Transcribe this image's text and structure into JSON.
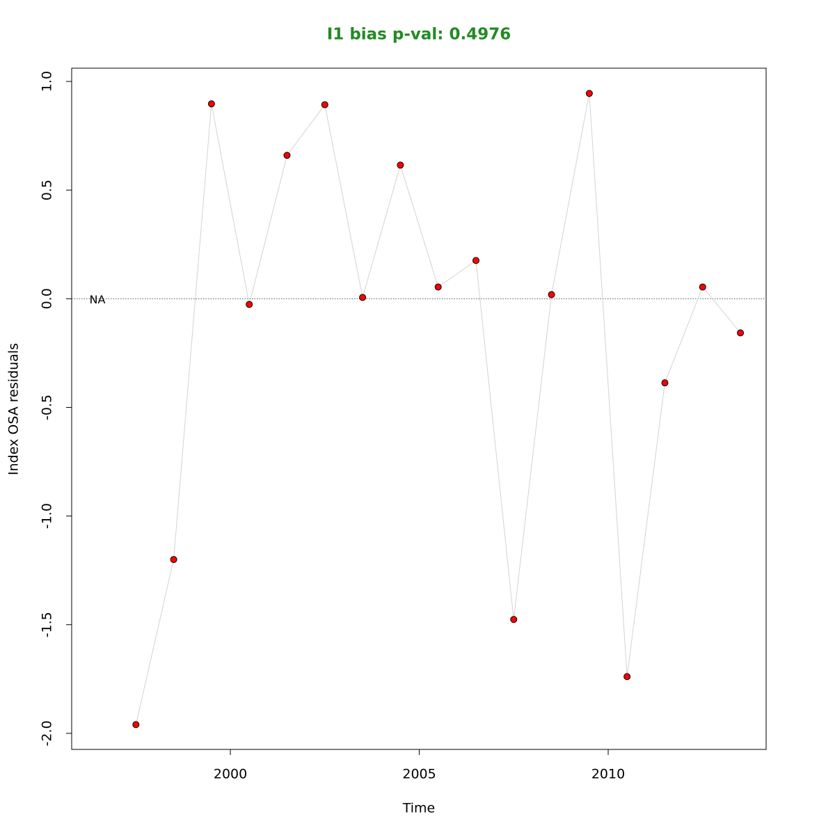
{
  "chart_data": {
    "type": "line",
    "title": "I1 bias p-val: 0.4976",
    "title_color": "#228b22",
    "x_label": "Time",
    "y_label": "Index OSA residuals",
    "annotation": "NA",
    "hline": 0,
    "x": [
      1997.5,
      1998.5,
      1999.5,
      2000.5,
      2001.5,
      2002.5,
      2003.5,
      2004.5,
      2005.5,
      2006.5,
      2007.5,
      2008.5,
      2009.5,
      2010.5,
      2011.5,
      2012.5,
      2013.5
    ],
    "series": [
      {
        "line_color": "#d3d3d3",
        "color": "#ff0000",
        "values": [
          -1.96,
          -1.2,
          0.897,
          -0.026,
          0.66,
          0.893,
          0.006,
          0.615,
          0.054,
          0.176,
          -1.476,
          0.019,
          0.945,
          -1.739,
          -0.387,
          0.054,
          -0.157
        ]
      }
    ],
    "xlim": [
      1995.8,
      2014.18
    ],
    "xticks": [
      2000,
      2005,
      2010
    ],
    "ylim": [
      -2.074,
      1.061
    ],
    "yticks": [
      {
        "value": -2,
        "label": "-2.0"
      },
      -1.5,
      {
        "value": -1,
        "label": "-1.0"
      },
      -0.5,
      {
        "value": 0,
        "label": "0.0"
      },
      0.5,
      {
        "value": 1,
        "label": "1.0"
      }
    ]
  }
}
